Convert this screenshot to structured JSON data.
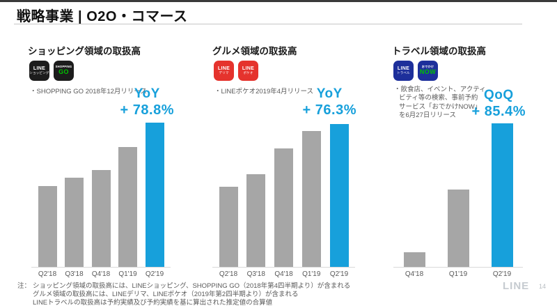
{
  "slide": {
    "title": "戦略事業 | O2O・コマース",
    "note_label": "注：",
    "footnotes": [
      "ショッピング領域の取扱高には、LINEショッピング、SHOPPING GO（2018年第4四半期より）が含まれる",
      "グルメ領域の取扱高には、LINEデリマ、LINEポケオ（2019年第2四半期より）が含まれる",
      "LINEトラベルの取扱高は予約実績及び予約実績を基に算出された推定値の合算値"
    ],
    "footer_logo": "LINE",
    "page_number": "14"
  },
  "colors": {
    "accent": "#17a0db",
    "bar_gray": "#a6a6a6",
    "black_tile": "#1c1c1c",
    "red_tile": "#e5332d",
    "blue_tile": "#1d2f9b",
    "green": "#00c300",
    "white": "#ffffff"
  },
  "sections": [
    {
      "title": "ショッピング領域の取扱高",
      "icons": [
        {
          "name": "line-shopping",
          "bg": "#1c1c1c",
          "top": {
            "text": "LINE",
            "color": "#ffffff"
          },
          "bottom": {
            "text": "ショッピング",
            "color": "#ffffff"
          }
        },
        {
          "name": "shopping-go",
          "bg": "#1c1c1c",
          "top": {
            "text": "SHOPPING",
            "color": "#ffffff"
          },
          "bottom": {
            "text": "GO",
            "color": "#00c300"
          }
        }
      ],
      "note_lines": [
        "・SHOPPING GO 2018年12月リリース"
      ],
      "growth_label": "YoY",
      "growth_value": "+ 78.8%"
    },
    {
      "title": "グルメ領域の取扱高",
      "icons": [
        {
          "name": "line-delima",
          "bg": "#e5332d",
          "top": {
            "text": "LINE",
            "color": "#ffffff"
          },
          "bottom": {
            "text": "デリマ",
            "color": "#ffffff"
          }
        },
        {
          "name": "line-pokeo",
          "bg": "#e5332d",
          "top": {
            "text": "LINE",
            "color": "#ffffff"
          },
          "bottom": {
            "text": "ポケオ",
            "color": "#ffffff"
          }
        }
      ],
      "note_lines": [
        "・LINEポケオ2019年4月リリース"
      ],
      "growth_label": "YoY",
      "growth_value": "+ 76.3%"
    },
    {
      "title": "トラベル領域の取扱高",
      "icons": [
        {
          "name": "line-travel",
          "bg": "#1d2f9b",
          "top": {
            "text": "LINE",
            "color": "#ffffff"
          },
          "bottom": {
            "text": "トラベル",
            "color": "#ffffff"
          }
        },
        {
          "name": "odekake-now",
          "bg": "#1d2f9b",
          "top": {
            "text": "おでかけ",
            "color": "#ffffff"
          },
          "bottom": {
            "text": "NOW",
            "color": "#00c300"
          }
        }
      ],
      "note_lines": [
        "・飲食店、イベント、アクティ",
        "ビティ等の検索、事前予約",
        "サービス「おでかけNOW」",
        "を6月27日リリース"
      ],
      "growth_label": "QoQ",
      "growth_value": "+ 85.4%"
    }
  ],
  "chart_data": [
    {
      "type": "bar",
      "title": "ショッピング領域の取扱高",
      "categories": [
        "Q2'18",
        "Q3'18",
        "Q4'18",
        "Q1'19",
        "Q2'19"
      ],
      "values": [
        56,
        62,
        67,
        83,
        100
      ],
      "unit": "relative index (Q2'19 = 100, estimated from bar heights; no y-axis shown)",
      "highlight_index": 4,
      "annotation": "YoY + 78.8%",
      "xlabel": "",
      "ylabel": "",
      "grid": false,
      "legend": false
    },
    {
      "type": "bar",
      "title": "グルメ領域の取扱高",
      "categories": [
        "Q2'18",
        "Q3'18",
        "Q4'18",
        "Q1'19",
        "Q2'19"
      ],
      "values": [
        56,
        65,
        83,
        95,
        100
      ],
      "unit": "relative index (Q2'19 = 100, estimated from bar heights; no y-axis shown)",
      "highlight_index": 4,
      "annotation": "YoY + 76.3%",
      "xlabel": "",
      "ylabel": "",
      "grid": false,
      "legend": false
    },
    {
      "type": "bar",
      "title": "トラベル領域の取扱高",
      "categories": [
        "Q4'18",
        "Q1'19",
        "Q2'19"
      ],
      "values": [
        10,
        54,
        100
      ],
      "unit": "relative index (Q2'19 = 100, estimated from bar heights; no y-axis shown)",
      "highlight_index": 2,
      "annotation": "QoQ + 85.4%",
      "xlabel": "",
      "ylabel": "",
      "grid": false,
      "legend": false
    }
  ]
}
